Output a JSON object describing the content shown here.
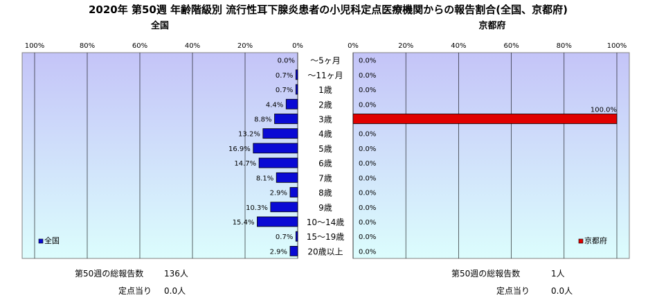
{
  "chart_data": {
    "type": "bar",
    "title": "2020年 第50週 年齢階級別 流行性耳下腺炎患者の小児科定点医療機関からの報告割合(全国、京都府)",
    "categories": [
      "～5ヶ月",
      "～11ヶ月",
      "1歳",
      "2歳",
      "3歳",
      "4歳",
      "5歳",
      "6歳",
      "7歳",
      "8歳",
      "9歳",
      "10～14歳",
      "15～19歳",
      "20歳以上"
    ],
    "xlim": [
      0,
      100
    ],
    "ticks": [
      "100%",
      "80%",
      "60%",
      "40%",
      "20%",
      "0%"
    ],
    "ticks_right": [
      "0%",
      "20%",
      "40%",
      "60%",
      "80%",
      "100%"
    ],
    "unit": "%",
    "grid": true,
    "panels": [
      {
        "name": "全国",
        "legend": "全国",
        "legend_position": "bottom-left",
        "color": "#0a0ad4",
        "values": [
          0.0,
          0.7,
          0.7,
          4.4,
          8.8,
          13.2,
          16.9,
          14.7,
          8.1,
          2.9,
          10.3,
          15.4,
          0.7,
          2.9
        ],
        "labels": [
          "0.0%",
          "0.7%",
          "0.7%",
          "4.4%",
          "8.8%",
          "13.2%",
          "16.9%",
          "14.7%",
          "8.1%",
          "2.9%",
          "10.3%",
          "15.4%",
          "0.7%",
          "2.9%"
        ]
      },
      {
        "name": "京都府",
        "legend": "京都府",
        "legend_position": "bottom-right",
        "color": "#e00000",
        "values": [
          0.0,
          0.0,
          0.0,
          0.0,
          100.0,
          0.0,
          0.0,
          0.0,
          0.0,
          0.0,
          0.0,
          0.0,
          0.0,
          0.0
        ],
        "labels": [
          "0.0%",
          "0.0%",
          "0.0%",
          "0.0%",
          "100.0%",
          "0.0%",
          "0.0%",
          "0.0%",
          "0.0%",
          "0.0%",
          "0.0%",
          "0.0%",
          "0.0%",
          "0.0%"
        ]
      }
    ]
  },
  "stats": {
    "left": {
      "total_label": "第50週の総報告数",
      "total_value": "136人",
      "per_label": "定点当り",
      "per_value": "0.0人"
    },
    "right": {
      "total_label": "第50週の総報告数",
      "total_value": "1人",
      "per_label": "定点当り",
      "per_value": "0.0人"
    }
  }
}
